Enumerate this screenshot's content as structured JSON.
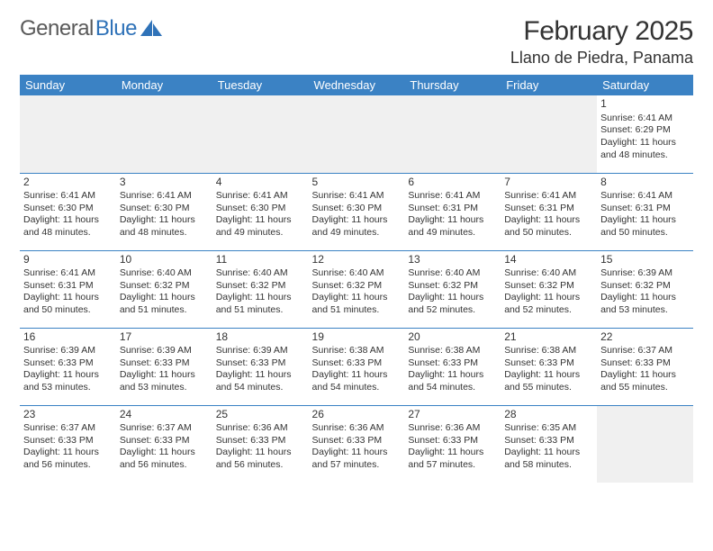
{
  "logo": {
    "word1": "General",
    "word2": "Blue"
  },
  "title": "February 2025",
  "location": "Llano de Piedra, Panama",
  "colors": {
    "header_bg": "#3b82c4",
    "header_text": "#ffffff",
    "border": "#3b82c4",
    "body_text": "#333333",
    "logo_gray": "#5a5a5a",
    "logo_blue": "#2f72b8",
    "empty_bg": "#f0f0f0"
  },
  "weekdays": [
    "Sunday",
    "Monday",
    "Tuesday",
    "Wednesday",
    "Thursday",
    "Friday",
    "Saturday"
  ],
  "weeks": [
    [
      null,
      null,
      null,
      null,
      null,
      null,
      {
        "n": "1",
        "sr": "Sunrise: 6:41 AM",
        "ss": "Sunset: 6:29 PM",
        "dl": "Daylight: 11 hours and 48 minutes."
      }
    ],
    [
      {
        "n": "2",
        "sr": "Sunrise: 6:41 AM",
        "ss": "Sunset: 6:30 PM",
        "dl": "Daylight: 11 hours and 48 minutes."
      },
      {
        "n": "3",
        "sr": "Sunrise: 6:41 AM",
        "ss": "Sunset: 6:30 PM",
        "dl": "Daylight: 11 hours and 48 minutes."
      },
      {
        "n": "4",
        "sr": "Sunrise: 6:41 AM",
        "ss": "Sunset: 6:30 PM",
        "dl": "Daylight: 11 hours and 49 minutes."
      },
      {
        "n": "5",
        "sr": "Sunrise: 6:41 AM",
        "ss": "Sunset: 6:30 PM",
        "dl": "Daylight: 11 hours and 49 minutes."
      },
      {
        "n": "6",
        "sr": "Sunrise: 6:41 AM",
        "ss": "Sunset: 6:31 PM",
        "dl": "Daylight: 11 hours and 49 minutes."
      },
      {
        "n": "7",
        "sr": "Sunrise: 6:41 AM",
        "ss": "Sunset: 6:31 PM",
        "dl": "Daylight: 11 hours and 50 minutes."
      },
      {
        "n": "8",
        "sr": "Sunrise: 6:41 AM",
        "ss": "Sunset: 6:31 PM",
        "dl": "Daylight: 11 hours and 50 minutes."
      }
    ],
    [
      {
        "n": "9",
        "sr": "Sunrise: 6:41 AM",
        "ss": "Sunset: 6:31 PM",
        "dl": "Daylight: 11 hours and 50 minutes."
      },
      {
        "n": "10",
        "sr": "Sunrise: 6:40 AM",
        "ss": "Sunset: 6:32 PM",
        "dl": "Daylight: 11 hours and 51 minutes."
      },
      {
        "n": "11",
        "sr": "Sunrise: 6:40 AM",
        "ss": "Sunset: 6:32 PM",
        "dl": "Daylight: 11 hours and 51 minutes."
      },
      {
        "n": "12",
        "sr": "Sunrise: 6:40 AM",
        "ss": "Sunset: 6:32 PM",
        "dl": "Daylight: 11 hours and 51 minutes."
      },
      {
        "n": "13",
        "sr": "Sunrise: 6:40 AM",
        "ss": "Sunset: 6:32 PM",
        "dl": "Daylight: 11 hours and 52 minutes."
      },
      {
        "n": "14",
        "sr": "Sunrise: 6:40 AM",
        "ss": "Sunset: 6:32 PM",
        "dl": "Daylight: 11 hours and 52 minutes."
      },
      {
        "n": "15",
        "sr": "Sunrise: 6:39 AM",
        "ss": "Sunset: 6:32 PM",
        "dl": "Daylight: 11 hours and 53 minutes."
      }
    ],
    [
      {
        "n": "16",
        "sr": "Sunrise: 6:39 AM",
        "ss": "Sunset: 6:33 PM",
        "dl": "Daylight: 11 hours and 53 minutes."
      },
      {
        "n": "17",
        "sr": "Sunrise: 6:39 AM",
        "ss": "Sunset: 6:33 PM",
        "dl": "Daylight: 11 hours and 53 minutes."
      },
      {
        "n": "18",
        "sr": "Sunrise: 6:39 AM",
        "ss": "Sunset: 6:33 PM",
        "dl": "Daylight: 11 hours and 54 minutes."
      },
      {
        "n": "19",
        "sr": "Sunrise: 6:38 AM",
        "ss": "Sunset: 6:33 PM",
        "dl": "Daylight: 11 hours and 54 minutes."
      },
      {
        "n": "20",
        "sr": "Sunrise: 6:38 AM",
        "ss": "Sunset: 6:33 PM",
        "dl": "Daylight: 11 hours and 54 minutes."
      },
      {
        "n": "21",
        "sr": "Sunrise: 6:38 AM",
        "ss": "Sunset: 6:33 PM",
        "dl": "Daylight: 11 hours and 55 minutes."
      },
      {
        "n": "22",
        "sr": "Sunrise: 6:37 AM",
        "ss": "Sunset: 6:33 PM",
        "dl": "Daylight: 11 hours and 55 minutes."
      }
    ],
    [
      {
        "n": "23",
        "sr": "Sunrise: 6:37 AM",
        "ss": "Sunset: 6:33 PM",
        "dl": "Daylight: 11 hours and 56 minutes."
      },
      {
        "n": "24",
        "sr": "Sunrise: 6:37 AM",
        "ss": "Sunset: 6:33 PM",
        "dl": "Daylight: 11 hours and 56 minutes."
      },
      {
        "n": "25",
        "sr": "Sunrise: 6:36 AM",
        "ss": "Sunset: 6:33 PM",
        "dl": "Daylight: 11 hours and 56 minutes."
      },
      {
        "n": "26",
        "sr": "Sunrise: 6:36 AM",
        "ss": "Sunset: 6:33 PM",
        "dl": "Daylight: 11 hours and 57 minutes."
      },
      {
        "n": "27",
        "sr": "Sunrise: 6:36 AM",
        "ss": "Sunset: 6:33 PM",
        "dl": "Daylight: 11 hours and 57 minutes."
      },
      {
        "n": "28",
        "sr": "Sunrise: 6:35 AM",
        "ss": "Sunset: 6:33 PM",
        "dl": "Daylight: 11 hours and 58 minutes."
      },
      null
    ]
  ]
}
